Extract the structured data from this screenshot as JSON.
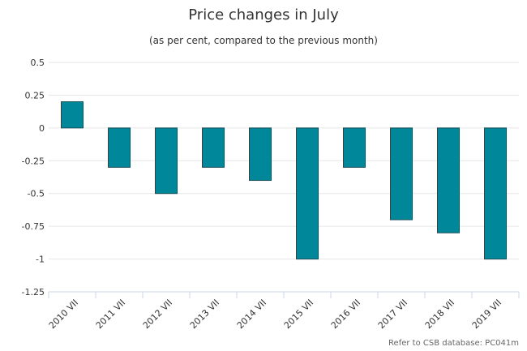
{
  "chart_data": {
    "type": "bar",
    "title": "Price changes in July",
    "subtitle": "(as per cent, compared to the previous month)",
    "categories": [
      "2010 VII",
      "2011 VII",
      "2012 VII",
      "2013 VII",
      "2014 VII",
      "2015 VII",
      "2016 VII",
      "2017 VII",
      "2018 VII",
      "2019 VII"
    ],
    "values": [
      0.2,
      -0.3,
      -0.5,
      -0.3,
      -0.4,
      -1.0,
      -0.3,
      -0.7,
      -0.8,
      -1.0
    ],
    "xlabel": "",
    "ylabel": "",
    "ylim": [
      -1.25,
      0.5
    ],
    "yticks": [
      0.5,
      0.25,
      0,
      -0.25,
      -0.5,
      -0.75,
      -1,
      -1.25
    ],
    "ytick_labels": [
      "0.5",
      "0.25",
      "0",
      "-0.25",
      "-0.5",
      "-0.75",
      "-1",
      "-1.25"
    ],
    "grid": true,
    "legend": "none",
    "bar_color": "#00889a",
    "bar_edge_color": "#1a4d57",
    "grid_color": "#e6e6e6"
  },
  "footer": {
    "source": "Refer to CSB database: PC041m"
  }
}
